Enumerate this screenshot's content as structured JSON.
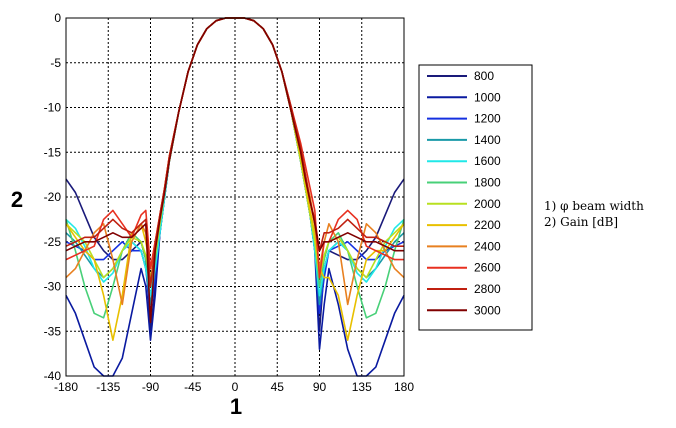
{
  "chart_data": {
    "type": "line",
    "xlabel": "1",
    "ylabel": "2",
    "xlim": [
      -180,
      180
    ],
    "ylim": [
      -40,
      0
    ],
    "xticks": [
      -180,
      -135,
      -90,
      -45,
      0,
      45,
      90,
      135,
      180
    ],
    "yticks": [
      0,
      -5,
      -10,
      -15,
      -20,
      -25,
      -30,
      -35,
      -40
    ],
    "grid": true,
    "legend_position": "right",
    "x": [
      -180,
      -170,
      -160,
      -150,
      -140,
      -130,
      -120,
      -110,
      -100,
      -95,
      -90,
      -85,
      -80,
      -75,
      -70,
      -60,
      -50,
      -40,
      -30,
      -20,
      -10,
      0,
      10,
      20,
      30,
      40,
      50,
      60,
      70,
      75,
      80,
      85,
      90,
      95,
      100,
      110,
      120,
      130,
      140,
      150,
      160,
      170,
      180
    ],
    "series": [
      {
        "name": "800",
        "color": "#1a1a7a",
        "values": [
          -18,
          -19.5,
          -22,
          -24.5,
          -26,
          -27,
          -27,
          -26,
          -25,
          -27,
          -35,
          -30,
          -24,
          -20,
          -16,
          -10.5,
          -6,
          -3,
          -1.2,
          -0.3,
          0,
          0,
          0,
          -0.3,
          -1.2,
          -3,
          -6,
          -10.5,
          -16,
          -19,
          -22,
          -25,
          -35,
          -28,
          -26,
          -26.5,
          -27,
          -27,
          -26,
          -24.5,
          -22,
          -19.5,
          -18
        ]
      },
      {
        "name": "1000",
        "color": "#0a1aa0",
        "values": [
          -31,
          -33,
          -36,
          -39,
          -40,
          -40,
          -38,
          -33,
          -28,
          -30,
          -36,
          -31,
          -24,
          -20,
          -16,
          -10.5,
          -6,
          -3,
          -1.2,
          -0.3,
          0,
          0,
          0,
          -0.3,
          -1.2,
          -3,
          -6,
          -10.5,
          -16,
          -19,
          -22,
          -26,
          -37,
          -32,
          -28,
          -32,
          -37,
          -40,
          -40,
          -39,
          -36,
          -33,
          -31
        ]
      },
      {
        "name": "1200",
        "color": "#1530e0",
        "values": [
          -25,
          -25.5,
          -26,
          -27,
          -27,
          -26,
          -25,
          -26,
          -26,
          -28,
          -33,
          -29,
          -24,
          -20,
          -16,
          -10.5,
          -6,
          -3,
          -1.2,
          -0.3,
          0,
          0,
          0,
          -0.3,
          -1.2,
          -3,
          -6,
          -10.5,
          -16,
          -19,
          -22,
          -26,
          -33,
          -29,
          -26,
          -25.5,
          -25,
          -26,
          -27,
          -27,
          -26,
          -25.5,
          -25
        ]
      },
      {
        "name": "1400",
        "color": "#1a9aa8",
        "values": [
          -24,
          -25,
          -26.5,
          -28,
          -29,
          -28,
          -26,
          -25,
          -26,
          -28,
          -32,
          -28,
          -24,
          -20,
          -16,
          -10.5,
          -6,
          -3,
          -1.2,
          -0.3,
          0,
          0,
          0,
          -0.3,
          -1.2,
          -3,
          -6,
          -10.5,
          -16,
          -19,
          -22,
          -26,
          -32,
          -28,
          -26,
          -25,
          -26,
          -28,
          -29,
          -28,
          -26.5,
          -25,
          -24
        ]
      },
      {
        "name": "1600",
        "color": "#20e8e8",
        "values": [
          -22.5,
          -23.5,
          -25.5,
          -28,
          -29.5,
          -28.5,
          -26,
          -25,
          -26,
          -28,
          -31,
          -28,
          -24,
          -20,
          -16,
          -10.5,
          -6,
          -3,
          -1.2,
          -0.3,
          0,
          0,
          0,
          -0.3,
          -1.2,
          -3,
          -6,
          -10.5,
          -16,
          -19,
          -22,
          -26,
          -31,
          -28,
          -26,
          -25,
          -26,
          -28.5,
          -29.5,
          -28,
          -25.5,
          -23.5,
          -22.5
        ]
      },
      {
        "name": "1800",
        "color": "#48d078",
        "values": [
          -22.5,
          -26,
          -30,
          -33,
          -33.5,
          -30,
          -26,
          -24,
          -25,
          -27,
          -30,
          -27,
          -23,
          -19.5,
          -16,
          -10.5,
          -6,
          -3,
          -1.2,
          -0.3,
          0,
          0,
          0,
          -0.3,
          -1.2,
          -3,
          -6,
          -10.5,
          -16,
          -19,
          -22,
          -25,
          -30,
          -27,
          -25,
          -24,
          -26,
          -30,
          -33.5,
          -33,
          -30,
          -26,
          -22.5
        ]
      },
      {
        "name": "2000",
        "color": "#b8e020",
        "values": [
          -23,
          -24,
          -25,
          -27,
          -29,
          -28,
          -26,
          -24.5,
          -25,
          -26.5,
          -29,
          -26.5,
          -23,
          -19.5,
          -16,
          -10.5,
          -6,
          -3,
          -1.2,
          -0.3,
          0,
          0,
          0,
          -0.3,
          -1.2,
          -3,
          -6,
          -10.5,
          -16,
          -19,
          -22,
          -25,
          -29,
          -26.5,
          -25,
          -24.5,
          -26,
          -28,
          -29,
          -27,
          -25,
          -24,
          -23
        ]
      },
      {
        "name": "2200",
        "color": "#e8c000",
        "values": [
          -23,
          -24.5,
          -26,
          -27,
          -31,
          -36,
          -31,
          -24,
          -23,
          -25,
          -28,
          -26,
          -22.5,
          -19,
          -15.5,
          -10.5,
          -6,
          -3,
          -1.2,
          -0.3,
          0,
          0,
          0,
          -0.3,
          -1.2,
          -3,
          -6,
          -10.5,
          -15.5,
          -18.5,
          -21.5,
          -24,
          -28,
          -29,
          -29,
          -31,
          -36,
          -31,
          -27,
          -26,
          -26,
          -24.5,
          -23
        ]
      },
      {
        "name": "2400",
        "color": "#e88020",
        "values": [
          -29,
          -28,
          -26,
          -24,
          -23,
          -27,
          -32,
          -25,
          -23,
          -24,
          -28,
          -25,
          -22,
          -19,
          -15.5,
          -10.5,
          -6,
          -3,
          -1.2,
          -0.3,
          0,
          0,
          0,
          -0.3,
          -1.2,
          -3,
          -6,
          -10.5,
          -15,
          -17.5,
          -20,
          -23,
          -28,
          -25,
          -23,
          -25,
          -32,
          -27,
          -23,
          -24,
          -26,
          -28,
          -29
        ]
      },
      {
        "name": "2600",
        "color": "#e83020",
        "values": [
          -27,
          -26.5,
          -26,
          -25.5,
          -22.5,
          -21.5,
          -23,
          -24.5,
          -22,
          -21.5,
          -28,
          -25,
          -22,
          -19,
          -15.5,
          -10.5,
          -6,
          -3,
          -1.2,
          -0.3,
          0,
          0,
          0,
          -0.3,
          -1.2,
          -3,
          -6,
          -10,
          -14,
          -16.5,
          -19,
          -21.5,
          -29,
          -25,
          -25,
          -22.5,
          -21.5,
          -22.5,
          -25.5,
          -26,
          -26.5,
          -27,
          -27
        ]
      },
      {
        "name": "2800",
        "color": "#c02010",
        "values": [
          -25.5,
          -25,
          -24.5,
          -24.5,
          -23.5,
          -22.5,
          -23.5,
          -24,
          -23,
          -22.5,
          -30,
          -25.5,
          -22,
          -19,
          -15.5,
          -10.5,
          -6,
          -3,
          -1.2,
          -0.3,
          0,
          0,
          0,
          -0.3,
          -1.2,
          -3,
          -6,
          -10,
          -14.5,
          -17.5,
          -20.5,
          -22.5,
          -26,
          -24,
          -24,
          -23.5,
          -22.5,
          -23.5,
          -24.5,
          -24.5,
          -25,
          -25.5,
          -25.5
        ]
      },
      {
        "name": "3000",
        "color": "#800000",
        "values": [
          -26,
          -25.5,
          -25,
          -25,
          -24.5,
          -24,
          -24.5,
          -24.5,
          -23.5,
          -23,
          -34,
          -26,
          -22.5,
          -19.5,
          -16,
          -10.5,
          -6,
          -3,
          -1.2,
          -0.3,
          0,
          0,
          0,
          -0.3,
          -1.2,
          -3,
          -6,
          -10.5,
          -15,
          -18,
          -20.5,
          -23,
          -26,
          -25,
          -25,
          -24.5,
          -24,
          -24.5,
          -25,
          -25,
          -25.5,
          -26,
          -26
        ]
      }
    ]
  },
  "notes": [
    "1) φ beam width",
    "2) Gain [dB]"
  ]
}
